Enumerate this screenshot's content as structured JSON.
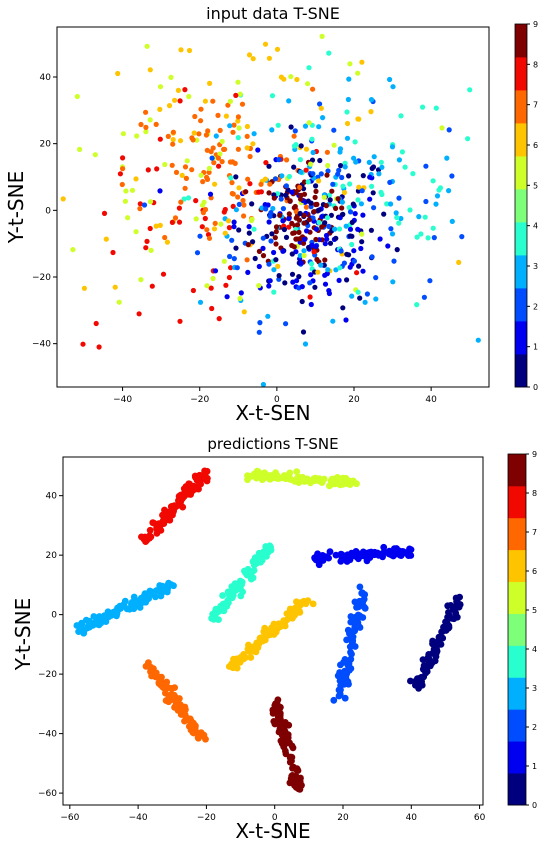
{
  "charts": [
    {
      "title": "input data T-SNE",
      "xlabel": "X-t-SEN",
      "ylabel": "Y-t-SNE",
      "xticks": [
        -40,
        -20,
        0,
        20,
        40
      ],
      "yticks": [
        -40,
        -20,
        0,
        20,
        40
      ],
      "colorbar_ticks": [
        0,
        1,
        2,
        3,
        4,
        5,
        6,
        7,
        8,
        9
      ]
    },
    {
      "title": "predictions T-SNE",
      "xlabel": "X-t-SNE",
      "ylabel": "Y-t-SNE",
      "xticks": [
        -60,
        -40,
        -20,
        0,
        20,
        40,
        60
      ],
      "yticks": [
        -60,
        -40,
        -20,
        0,
        20,
        40
      ],
      "colorbar_ticks": [
        0,
        1,
        2,
        3,
        4,
        5,
        6,
        7,
        8,
        9
      ]
    }
  ],
  "colormap": {
    "name": "jet",
    "class_colors": [
      "#00007f",
      "#0000f1",
      "#004cff",
      "#00b0ff",
      "#29ffce",
      "#7dff7a",
      "#ceff29",
      "#ffc400",
      "#ff6800",
      "#f10800",
      "#7f0000"
    ]
  },
  "chart_data": [
    {
      "type": "scatter",
      "title": "input data T-SNE",
      "xlabel": "X-t-SEN",
      "ylabel": "Y-t-SNE",
      "xlim": [
        -57,
        55
      ],
      "ylim": [
        -53,
        55
      ],
      "colorbar": {
        "range": [
          0,
          9
        ],
        "ticks": [
          0,
          1,
          2,
          3,
          4,
          5,
          6,
          7,
          8,
          9
        ]
      },
      "clusters": [
        {
          "label": 0,
          "center": [
            10,
            -5
          ],
          "spread": [
            10,
            12
          ],
          "count": 90
        },
        {
          "label": 1,
          "center": [
            8,
            -8
          ],
          "spread": [
            11,
            12
          ],
          "count": 90
        },
        {
          "label": 2,
          "center": [
            12,
            -2
          ],
          "spread": [
            16,
            15
          ],
          "count": 80
        },
        {
          "label": 3,
          "center": [
            14,
            2
          ],
          "spread": [
            17,
            16
          ],
          "count": 80
        },
        {
          "label": 4,
          "center": [
            18,
            5
          ],
          "spread": [
            20,
            20
          ],
          "count": 70
        },
        {
          "label": 5,
          "center": [
            -15,
            10
          ],
          "spread": [
            24,
            22
          ],
          "count": 70
        },
        {
          "label": 6,
          "center": [
            -10,
            18
          ],
          "spread": [
            24,
            20
          ],
          "count": 70
        },
        {
          "label": 7,
          "center": [
            -15,
            12
          ],
          "spread": [
            12,
            12
          ],
          "count": 90
        },
        {
          "label": 8,
          "center": [
            -22,
            -5
          ],
          "spread": [
            20,
            22
          ],
          "count": 60
        },
        {
          "label": 9,
          "center": [
            5,
            -2
          ],
          "spread": [
            5,
            7
          ],
          "count": 90
        }
      ]
    },
    {
      "type": "scatter",
      "title": "predictions T-SNE",
      "xlabel": "X-t-SNE",
      "ylabel": "Y-t-SNE",
      "xlim": [
        -62,
        61
      ],
      "ylim": [
        -64,
        53
      ],
      "colorbar": {
        "range": [
          0,
          9
        ],
        "ticks": [
          0,
          1,
          2,
          3,
          4,
          5,
          6,
          7,
          8,
          9
        ]
      },
      "clusters": [
        {
          "label": 0,
          "from": [
            42,
            -24
          ],
          "to": [
            54,
            5
          ],
          "count": 90
        },
        {
          "label": 1,
          "from": [
            12,
            19
          ],
          "to": [
            40,
            21
          ],
          "count": 100
        },
        {
          "label": 2,
          "from": [
            19,
            -29
          ],
          "to": [
            26,
            8
          ],
          "count": 90
        },
        {
          "label": 3,
          "from": [
            -57,
            -5
          ],
          "to": [
            -30,
            10
          ],
          "count": 110
        },
        {
          "label": 4,
          "from": [
            -18,
            -2
          ],
          "to": [
            -2,
            23
          ],
          "count": 90
        },
        {
          "label": 5,
          "from": [
            -7,
            47
          ],
          "to": [
            25,
            44
          ],
          "count": 100
        },
        {
          "label": 6,
          "from": [
            -14,
            -19
          ],
          "to": [
            10,
            5
          ],
          "count": 90
        },
        {
          "label": 7,
          "from": [
            -37,
            -17
          ],
          "to": [
            -21,
            -42
          ],
          "count": 100
        },
        {
          "label": 8,
          "from": [
            -38,
            25
          ],
          "to": [
            -20,
            48
          ],
          "count": 100
        },
        {
          "label": 9,
          "from": [
            0,
            -29
          ],
          "to": [
            7,
            -59
          ],
          "count": 90
        }
      ]
    }
  ]
}
